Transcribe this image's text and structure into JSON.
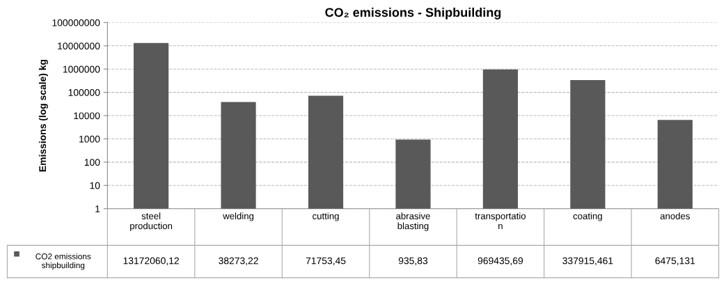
{
  "chart_data": {
    "type": "bar",
    "title": "CO₂ emissions - Shipbuilding",
    "ylabel": "Emissions (log scale) kg",
    "categories": [
      "steel\nproduction",
      "welding",
      "cutting",
      "abrasive\nblasting",
      "transportatio\nn",
      "coating",
      "anodes"
    ],
    "series": [
      {
        "name": "CO2 emissions\nshipbuilding",
        "color": "#595959",
        "values": [
          13172060.12,
          38273.22,
          71753.45,
          935.83,
          969435.69,
          337915.461,
          6475.131
        ],
        "value_labels": [
          "13172060,12",
          "38273,22",
          "71753,45",
          "935,83",
          "969435,69",
          "337915,461",
          "6475,131"
        ]
      }
    ],
    "log": "y",
    "ylim": [
      1,
      100000000
    ],
    "yticks": [
      1,
      10,
      100,
      1000,
      10000,
      100000,
      1000000,
      10000000,
      100000000
    ],
    "grid": "y",
    "legend": "bottom left"
  }
}
